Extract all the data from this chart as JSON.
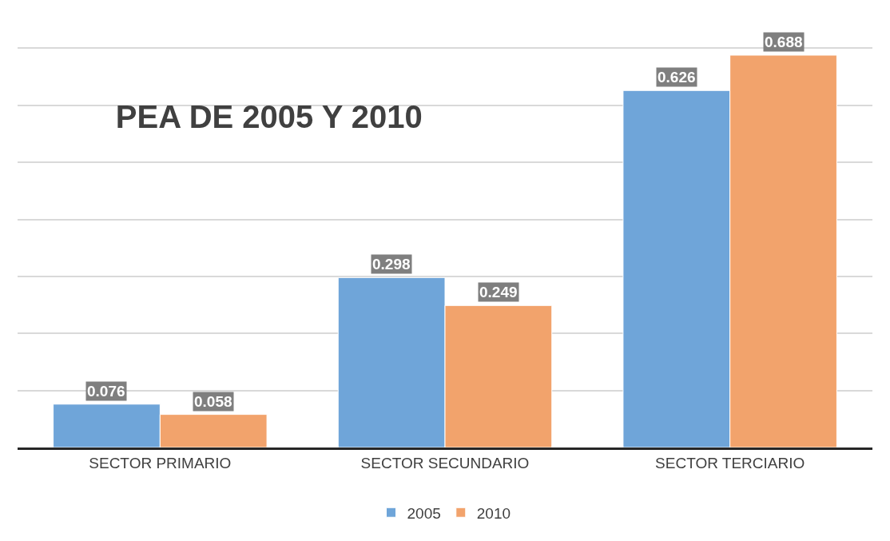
{
  "chart_data": {
    "type": "bar",
    "title": "PEA DE 2005 Y 2010",
    "categories": [
      "SECTOR PRIMARIO",
      "SECTOR SECUNDARIO",
      "SECTOR TERCIARIO"
    ],
    "series": [
      {
        "name": "2005",
        "color": "#6fa5d9",
        "values": [
          0.076,
          0.298,
          0.626
        ]
      },
      {
        "name": "2010",
        "color": "#f2a36c",
        "values": [
          0.058,
          0.249,
          0.688
        ]
      }
    ],
    "tick_labels": "x",
    "grid": "y",
    "data_labels": true,
    "legend": "bottom"
  }
}
